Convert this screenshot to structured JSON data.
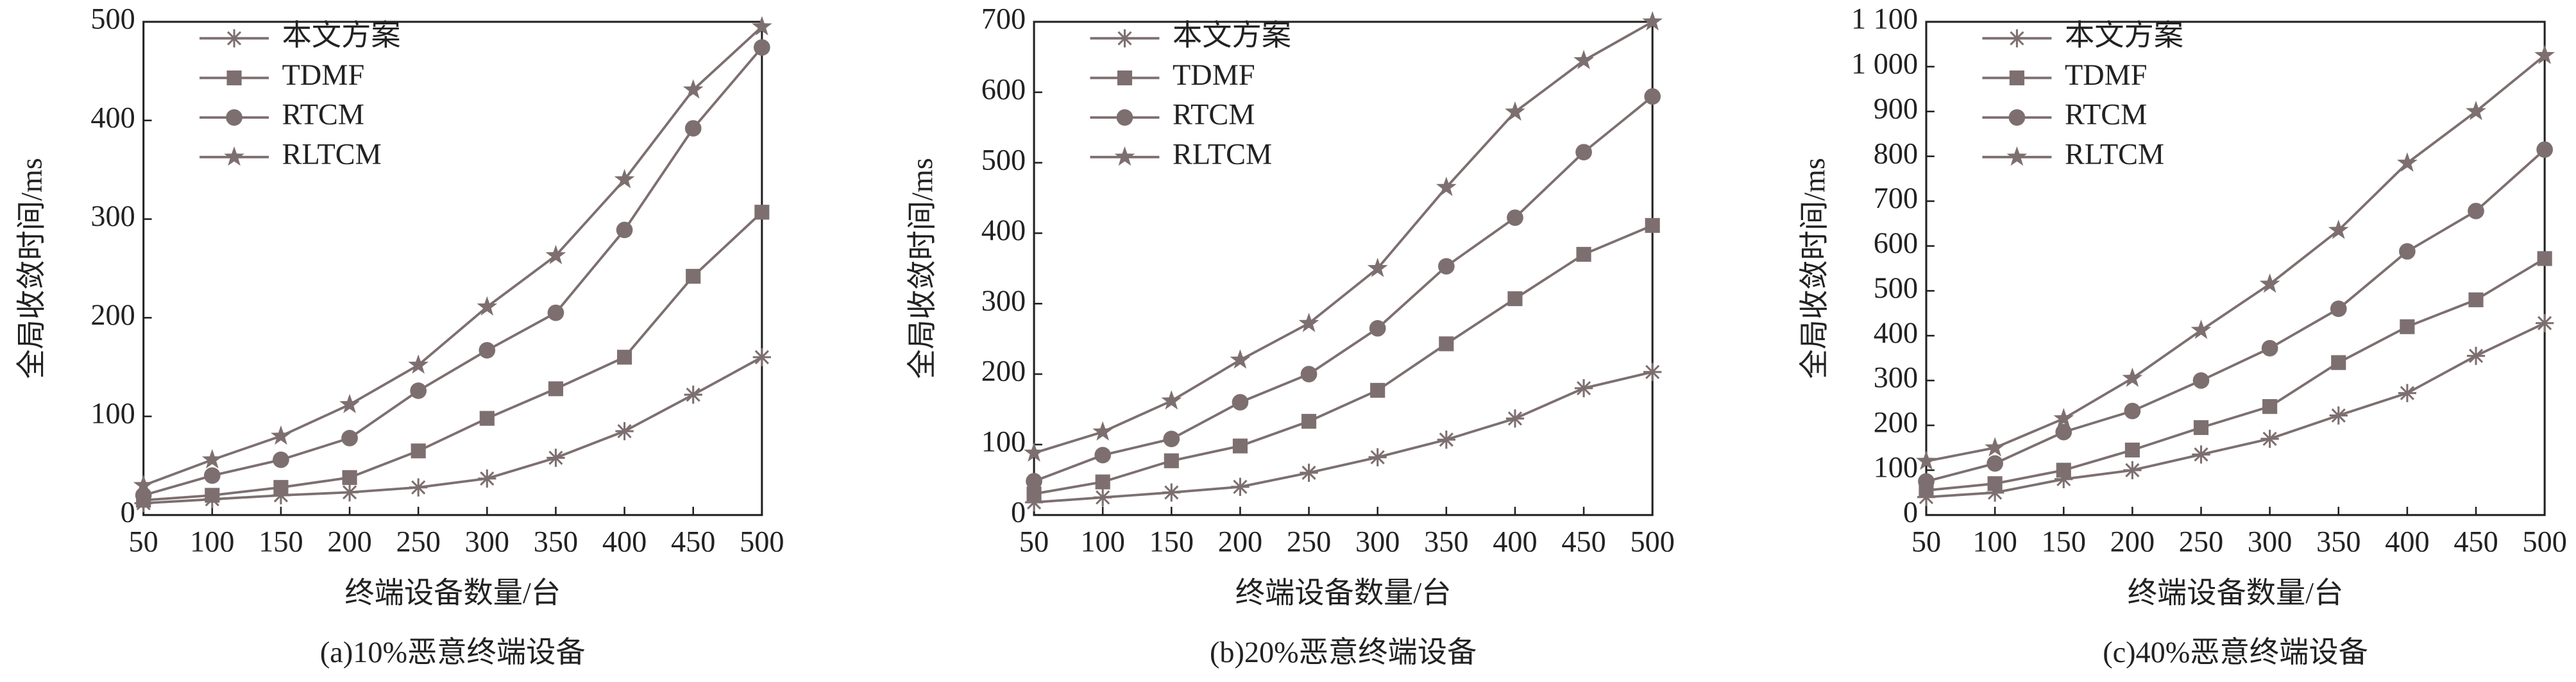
{
  "chart_data": [
    {
      "type": "line",
      "caption": "(a)10%恶意终端设备",
      "xlabel": "终端设备数量/台",
      "ylabel": "全局收敛时间/ms",
      "x": [
        50,
        100,
        150,
        200,
        250,
        300,
        350,
        400,
        450,
        500
      ],
      "xlim": [
        50,
        500
      ],
      "xticks": [
        50,
        100,
        150,
        200,
        250,
        300,
        350,
        400,
        450,
        500
      ],
      "ylim": [
        0,
        500
      ],
      "yticks": [
        0,
        100,
        200,
        300,
        400,
        500
      ],
      "legend": "upper left",
      "series": [
        {
          "name": "本文方案",
          "color": "#7d6f70",
          "marker": "asterisk",
          "values": [
            12,
            16,
            20,
            23,
            28,
            37,
            58,
            85,
            122,
            160
          ]
        },
        {
          "name": "TDMF",
          "color": "#7d6f70",
          "marker": "square",
          "values": [
            15,
            20,
            28,
            38,
            65,
            98,
            128,
            160,
            242,
            307
          ]
        },
        {
          "name": "RTCM",
          "color": "#7d6f70",
          "marker": "circle",
          "values": [
            20,
            40,
            56,
            78,
            126,
            167,
            205,
            289,
            392,
            474
          ]
        },
        {
          "name": "RLTCM",
          "color": "#7d6f70",
          "marker": "star",
          "values": [
            30,
            56,
            80,
            112,
            152,
            211,
            263,
            340,
            431,
            495
          ]
        }
      ]
    },
    {
      "type": "line",
      "caption": "(b)20%恶意终端设备",
      "xlabel": "终端设备数量/台",
      "ylabel": "全局收敛时间/ms",
      "x": [
        50,
        100,
        150,
        200,
        250,
        300,
        350,
        400,
        450,
        500
      ],
      "xlim": [
        50,
        500
      ],
      "xticks": [
        50,
        100,
        150,
        200,
        250,
        300,
        350,
        400,
        450,
        500
      ],
      "ylim": [
        0,
        700
      ],
      "yticks": [
        0,
        100,
        200,
        300,
        400,
        500,
        600,
        700
      ],
      "legend": "upper left",
      "series": [
        {
          "name": "本文方案",
          "color": "#7d6f70",
          "marker": "asterisk",
          "values": [
            18,
            25,
            32,
            40,
            60,
            82,
            107,
            137,
            180,
            203
          ]
        },
        {
          "name": "TDMF",
          "color": "#7d6f70",
          "marker": "square",
          "values": [
            30,
            47,
            77,
            98,
            133,
            177,
            243,
            307,
            370,
            411
          ]
        },
        {
          "name": "RTCM",
          "color": "#7d6f70",
          "marker": "circle",
          "values": [
            48,
            85,
            108,
            160,
            200,
            265,
            353,
            422,
            515,
            594
          ]
        },
        {
          "name": "RLTCM",
          "color": "#7d6f70",
          "marker": "star",
          "values": [
            88,
            118,
            162,
            220,
            272,
            350,
            465,
            572,
            645,
            700
          ]
        }
      ]
    },
    {
      "type": "line",
      "caption": "(c)40%恶意终端设备",
      "xlabel": "终端设备数量/台",
      "ylabel": "全局收敛时间/ms",
      "x": [
        50,
        100,
        150,
        200,
        250,
        300,
        350,
        400,
        450,
        500
      ],
      "xlim": [
        50,
        500
      ],
      "xticks": [
        50,
        100,
        150,
        200,
        250,
        300,
        350,
        400,
        450,
        500
      ],
      "ylim": [
        0,
        1100
      ],
      "yticks": [
        0,
        100,
        200,
        300,
        400,
        500,
        600,
        700,
        800,
        900,
        {
          "value": 1000,
          "label": "1 000"
        },
        {
          "value": 1100,
          "label": "1 100"
        }
      ],
      "legend": "upper left",
      "series": [
        {
          "name": "本文方案",
          "color": "#7d6f70",
          "marker": "asterisk",
          "values": [
            40,
            50,
            80,
            100,
            135,
            170,
            222,
            272,
            355,
            428
          ]
        },
        {
          "name": "TDMF",
          "color": "#7d6f70",
          "marker": "square",
          "values": [
            55,
            70,
            100,
            145,
            195,
            242,
            340,
            420,
            480,
            572
          ]
        },
        {
          "name": "RTCM",
          "color": "#7d6f70",
          "marker": "circle",
          "values": [
            75,
            115,
            185,
            232,
            300,
            372,
            460,
            588,
            678,
            815
          ]
        },
        {
          "name": "RLTCM",
          "color": "#7d6f70",
          "marker": "star",
          "values": [
            120,
            150,
            215,
            305,
            412,
            515,
            635,
            785,
            900,
            1025
          ]
        }
      ]
    }
  ]
}
